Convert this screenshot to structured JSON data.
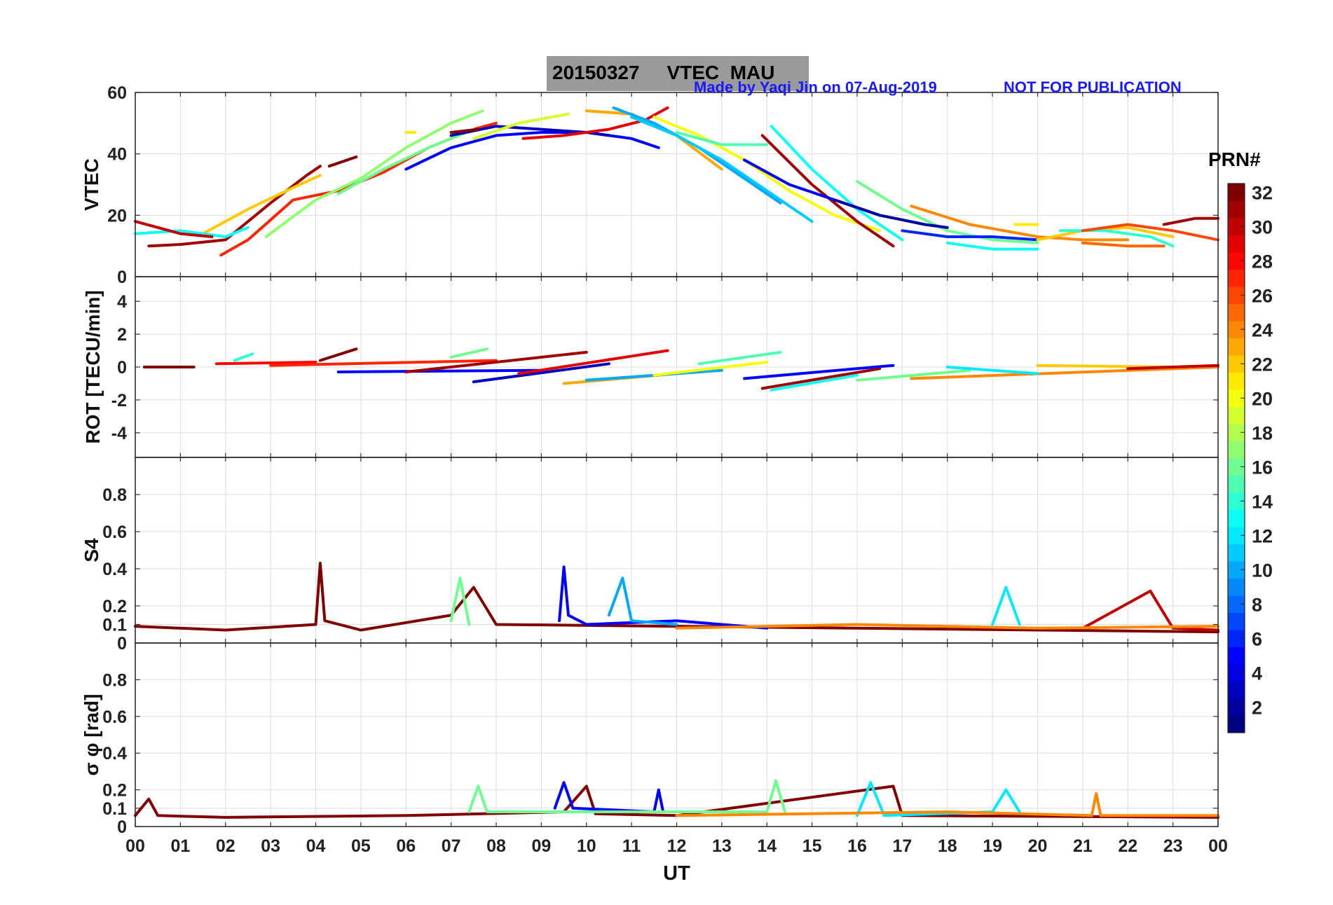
{
  "header": {
    "title": "20150327     VTEC  MAU",
    "credit": "Made by Yaqi Jin on 07-Aug-2019",
    "notice": "NOT FOR PUBLICATION"
  },
  "colorbar": {
    "title": "PRN#",
    "ticks": [
      "32",
      "30",
      "28",
      "26",
      "24",
      "22",
      "20",
      "18",
      "16",
      "14",
      "12",
      "10",
      "8",
      "6",
      "4",
      "2"
    ],
    "range": [
      1,
      32
    ],
    "colormap": "jet"
  },
  "chart_data": [
    {
      "type": "line",
      "panel": "vtec",
      "ylabel": "VTEC",
      "ylim": [
        0,
        60
      ],
      "yticks": [
        "0",
        "20",
        "40",
        "60"
      ],
      "xlim": [
        0,
        24
      ],
      "grid": true,
      "series": [
        {
          "prn": 31,
          "x": [
            0.3,
            1.0,
            2.0,
            3.0,
            3.8,
            4.1
          ],
          "y": [
            10,
            10.5,
            12,
            24,
            33,
            36
          ]
        },
        {
          "prn": 32,
          "x": [
            4.3,
            4.9
          ],
          "y": [
            36,
            39
          ]
        },
        {
          "prn": 22,
          "x": [
            1.5,
            2.5,
            3.5,
            4.1
          ],
          "y": [
            14,
            22,
            29,
            33
          ]
        },
        {
          "prn": 27,
          "x": [
            1.9,
            2.5,
            3.5,
            4.5,
            5.5,
            6.5,
            7.5,
            8.0
          ],
          "y": [
            7,
            12,
            25,
            28,
            34,
            42,
            48,
            50
          ]
        },
        {
          "prn": 13,
          "x": [
            0.0,
            1.0,
            2.0,
            2.5
          ],
          "y": [
            14,
            15,
            13,
            16
          ]
        },
        {
          "prn": 30,
          "x": [
            0.0,
            1.0,
            1.7
          ],
          "y": [
            18,
            14,
            13
          ]
        },
        {
          "prn": 17,
          "x": [
            2.9,
            4.0,
            5.0,
            6.0,
            7.0,
            7.7
          ],
          "y": [
            13,
            25,
            32,
            42,
            50,
            54
          ]
        },
        {
          "prn": 16,
          "x": [
            4.5,
            5.5,
            6.5,
            7.5
          ],
          "y": [
            27,
            35,
            42,
            48
          ]
        },
        {
          "prn": 5,
          "x": [
            6.0,
            7.0,
            8.0,
            9.0,
            10.0,
            11.0,
            11.6
          ],
          "y": [
            35,
            42,
            46,
            47,
            47,
            45,
            42
          ]
        },
        {
          "prn": 3,
          "x": [
            7.0,
            8.0,
            9.0,
            10.0,
            10.5
          ],
          "y": [
            46,
            49,
            48,
            47,
            46
          ]
        },
        {
          "prn": 19,
          "x": [
            7.5,
            8.5,
            9.6
          ],
          "y": [
            45,
            50,
            53
          ]
        },
        {
          "prn": 21,
          "x": [
            6.0,
            6.2
          ],
          "y": [
            47,
            47
          ]
        },
        {
          "prn": 29,
          "x": [
            8.6,
            9.5,
            10.5,
            11.3,
            11.8
          ],
          "y": [
            45,
            46,
            48,
            51,
            55
          ]
        },
        {
          "prn": 32,
          "x": [
            7.0,
            7.6
          ],
          "y": [
            47,
            48
          ]
        },
        {
          "prn": 23,
          "x": [
            10.0,
            11.0,
            12.0,
            13.0
          ],
          "y": [
            54,
            53,
            46,
            35
          ]
        },
        {
          "prn": 10,
          "x": [
            10.6,
            11.5,
            12.5,
            13.5,
            14.3
          ],
          "y": [
            55,
            50,
            42,
            32,
            24
          ]
        },
        {
          "prn": 20,
          "x": [
            11.5,
            12.5,
            13.5,
            14.5,
            15.5,
            16.5
          ],
          "y": [
            52,
            46,
            38,
            28,
            20,
            15
          ]
        },
        {
          "prn": 11,
          "x": [
            11.0,
            12.0,
            13.0,
            14.0,
            15.0
          ],
          "y": [
            52,
            46,
            38,
            28,
            18
          ]
        },
        {
          "prn": 15,
          "x": [
            12.0,
            13.0,
            14.0
          ],
          "y": [
            47,
            43,
            43
          ]
        },
        {
          "prn": 31,
          "x": [
            13.9,
            15.0,
            16.0,
            16.8
          ],
          "y": [
            46,
            30,
            18,
            10
          ]
        },
        {
          "prn": 5,
          "x": [
            13.5,
            14.5,
            15.5,
            16.5
          ],
          "y": [
            38,
            30,
            25,
            20
          ]
        },
        {
          "prn": 13,
          "x": [
            14.1,
            15.0,
            16.0,
            17.0
          ],
          "y": [
            49,
            35,
            22,
            12
          ]
        },
        {
          "prn": 16,
          "x": [
            16.0,
            17.0,
            18.0,
            19.0,
            20.0
          ],
          "y": [
            31,
            22,
            15,
            12,
            11
          ]
        },
        {
          "prn": 2,
          "x": [
            15.5,
            16.5,
            17.5,
            18.0
          ],
          "y": [
            25,
            20,
            17,
            16
          ]
        },
        {
          "prn": 6,
          "x": [
            17.0,
            18.0,
            19.0,
            20.0
          ],
          "y": [
            15,
            13,
            13,
            12
          ]
        },
        {
          "prn": 24,
          "x": [
            17.2,
            18.5,
            20.0,
            21.0,
            22.0
          ],
          "y": [
            23,
            17,
            13,
            12,
            12
          ]
        },
        {
          "prn": 13,
          "x": [
            18.0,
            19.0,
            20.0
          ],
          "y": [
            11,
            9,
            9
          ]
        },
        {
          "prn": 21,
          "x": [
            19.5,
            20.0
          ],
          "y": [
            17,
            17
          ]
        },
        {
          "prn": 22,
          "x": [
            20.0,
            21.0,
            22.0,
            23.0
          ],
          "y": [
            12,
            15,
            16,
            13
          ]
        },
        {
          "prn": 14,
          "x": [
            20.5,
            21.5,
            22.5,
            23.0
          ],
          "y": [
            15,
            15,
            13,
            10
          ]
        },
        {
          "prn": 25,
          "x": [
            21.0,
            22.0,
            22.8
          ],
          "y": [
            11,
            10,
            10
          ]
        },
        {
          "prn": 26,
          "x": [
            21.0,
            22.0,
            23.0,
            24.0
          ],
          "y": [
            15,
            17,
            15,
            12
          ]
        },
        {
          "prn": 31,
          "x": [
            22.8,
            23.5,
            24.0
          ],
          "y": [
            17,
            19,
            19
          ]
        }
      ]
    },
    {
      "type": "line",
      "panel": "rot",
      "ylabel": "ROT [TECU/min]",
      "ylim": [
        -5.5,
        5.5
      ],
      "yticks": [
        "-4",
        "-2",
        "0",
        "2",
        "4"
      ],
      "xlim": [
        0,
        24
      ],
      "grid": true,
      "series": [
        {
          "prn": 32,
          "x": [
            0.2,
            1.3
          ],
          "y": [
            0,
            0
          ]
        },
        {
          "prn": 28,
          "x": [
            1.8,
            4.0
          ],
          "y": [
            0.2,
            0.3
          ]
        },
        {
          "prn": 14,
          "x": [
            2.2,
            2.6
          ],
          "y": [
            0.4,
            0.8
          ]
        },
        {
          "prn": 32,
          "x": [
            4.1,
            4.9
          ],
          "y": [
            0.4,
            1.1
          ]
        },
        {
          "prn": 5,
          "x": [
            4.5,
            9.0
          ],
          "y": [
            -0.3,
            -0.2
          ]
        },
        {
          "prn": 27,
          "x": [
            3.0,
            8.0
          ],
          "y": [
            0.1,
            0.4
          ]
        },
        {
          "prn": 31,
          "x": [
            6.0,
            10.0
          ],
          "y": [
            -0.3,
            0.9
          ]
        },
        {
          "prn": 16,
          "x": [
            7.0,
            7.8
          ],
          "y": [
            0.6,
            1.1
          ]
        },
        {
          "prn": 3,
          "x": [
            7.5,
            10.5
          ],
          "y": [
            -0.9,
            0.2
          ]
        },
        {
          "prn": 29,
          "x": [
            8.5,
            11.8
          ],
          "y": [
            -0.4,
            1.0
          ]
        },
        {
          "prn": 23,
          "x": [
            9.5,
            12.0
          ],
          "y": [
            -1.0,
            -0.4
          ]
        },
        {
          "prn": 10,
          "x": [
            10.0,
            13.0
          ],
          "y": [
            -0.8,
            -0.2
          ]
        },
        {
          "prn": 20,
          "x": [
            11.5,
            14.0
          ],
          "y": [
            -0.5,
            0.3
          ]
        },
        {
          "prn": 15,
          "x": [
            12.5,
            14.3
          ],
          "y": [
            0.2,
            0.9
          ]
        },
        {
          "prn": 31,
          "x": [
            13.9,
            16.5
          ],
          "y": [
            -1.3,
            -0.1
          ]
        },
        {
          "prn": 13,
          "x": [
            14.1,
            16.0
          ],
          "y": [
            -1.4,
            -0.5
          ]
        },
        {
          "prn": 5,
          "x": [
            13.5,
            16.8
          ],
          "y": [
            -0.7,
            0.1
          ]
        },
        {
          "prn": 16,
          "x": [
            16.0,
            18.5
          ],
          "y": [
            -0.8,
            -0.2
          ]
        },
        {
          "prn": 24,
          "x": [
            17.2,
            24.0
          ],
          "y": [
            -0.7,
            0.0
          ]
        },
        {
          "prn": 12,
          "x": [
            18.0,
            20.0
          ],
          "y": [
            0,
            -0.4
          ]
        },
        {
          "prn": 22,
          "x": [
            20.0,
            23.0
          ],
          "y": [
            0.1,
            0.0
          ]
        },
        {
          "prn": 30,
          "x": [
            22.0,
            24.0
          ],
          "y": [
            -0.1,
            0.1
          ]
        }
      ]
    },
    {
      "type": "line",
      "panel": "s4",
      "ylabel": "S4",
      "ylim": [
        0,
        1
      ],
      "yticks": [
        "0",
        "0.1",
        "0.2",
        "0.4",
        "0.6",
        "0.8"
      ],
      "xlim": [
        0,
        24
      ],
      "grid": true,
      "description_note": "",
      "series": [
        {
          "prn": 32,
          "x": [
            0.0,
            2.0,
            4.0,
            4.1,
            4.2,
            5.0,
            7.0,
            7.5,
            8.0,
            24.0
          ],
          "y": [
            0.09,
            0.07,
            0.1,
            0.43,
            0.12,
            0.07,
            0.15,
            0.3,
            0.1,
            0.06
          ]
        },
        {
          "prn": 5,
          "x": [
            9.4,
            9.5,
            9.6,
            10.0,
            12.0,
            14.0
          ],
          "y": [
            0.12,
            0.41,
            0.15,
            0.1,
            0.12,
            0.08
          ]
        },
        {
          "prn": 10,
          "x": [
            10.5,
            10.8,
            11.0,
            12.0
          ],
          "y": [
            0.15,
            0.35,
            0.12,
            0.1
          ]
        },
        {
          "prn": 16,
          "x": [
            7.0,
            7.2,
            7.4
          ],
          "y": [
            0.12,
            0.35,
            0.1
          ]
        },
        {
          "prn": 12,
          "x": [
            19.0,
            19.3,
            19.6
          ],
          "y": [
            0.1,
            0.3,
            0.1
          ]
        },
        {
          "prn": 30,
          "x": [
            21.0,
            22.5,
            23.0,
            24.0
          ],
          "y": [
            0.08,
            0.28,
            0.08,
            0.07
          ]
        },
        {
          "prn": 24,
          "x": [
            12.0,
            16.0,
            20.0,
            24.0
          ],
          "y": [
            0.08,
            0.1,
            0.08,
            0.09
          ]
        }
      ]
    },
    {
      "type": "line",
      "panel": "sigma_phi",
      "ylabel": "σ φ [rad]",
      "ylim": [
        0,
        1
      ],
      "yticks": [
        "0",
        "0.1",
        "0.2",
        "0.4",
        "0.6",
        "0.8"
      ],
      "xlim": [
        0,
        24
      ],
      "xlabel": "UT",
      "xticks": [
        "00",
        "01",
        "02",
        "03",
        "04",
        "05",
        "06",
        "07",
        "08",
        "09",
        "10",
        "11",
        "12",
        "13",
        "14",
        "15",
        "16",
        "17",
        "18",
        "19",
        "20",
        "21",
        "22",
        "23",
        "00"
      ],
      "grid": true,
      "series": [
        {
          "prn": 32,
          "x": [
            0.0,
            0.3,
            0.5,
            2.0,
            6.0,
            9.5,
            10.0,
            10.2,
            12.0,
            16.8,
            17.0,
            24.0
          ],
          "y": [
            0.06,
            0.15,
            0.06,
            0.05,
            0.06,
            0.08,
            0.22,
            0.07,
            0.06,
            0.22,
            0.06,
            0.05
          ]
        },
        {
          "prn": 5,
          "x": [
            9.3,
            9.5,
            9.7,
            11.5,
            11.6,
            11.7
          ],
          "y": [
            0.1,
            0.24,
            0.1,
            0.08,
            0.2,
            0.08
          ]
        },
        {
          "prn": 16,
          "x": [
            7.4,
            7.6,
            7.8,
            14.0,
            14.2,
            14.4
          ],
          "y": [
            0.08,
            0.22,
            0.08,
            0.08,
            0.25,
            0.08
          ]
        },
        {
          "prn": 12,
          "x": [
            16.0,
            16.3,
            16.6,
            19.0,
            19.3,
            19.6
          ],
          "y": [
            0.06,
            0.24,
            0.06,
            0.08,
            0.2,
            0.08
          ]
        },
        {
          "prn": 24,
          "x": [
            12.0,
            18.0,
            21.2,
            21.3,
            21.4,
            24.0
          ],
          "y": [
            0.06,
            0.08,
            0.06,
            0.18,
            0.06,
            0.06
          ]
        }
      ]
    }
  ]
}
